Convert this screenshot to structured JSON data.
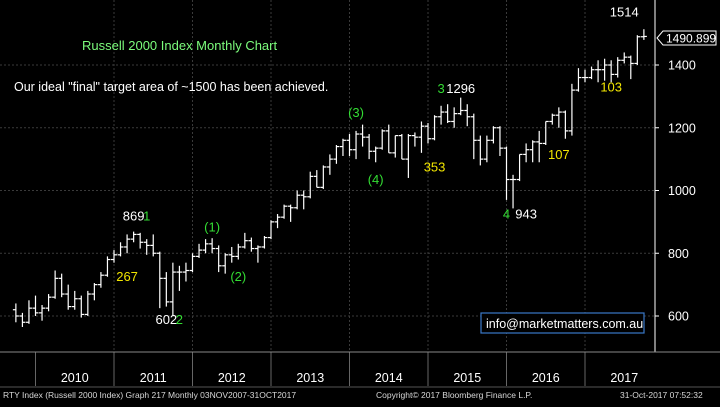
{
  "chart_data": {
    "type": "ohlc",
    "title": "Russell 2000 Index Monthly Chart",
    "annotation_text": "Our ideal \"final\" target area of ~1500 has been achieved.",
    "last_price_label": "1490.899",
    "watermark": "info@marketmatters.com.au",
    "footer_left": "RTY Index (Russell 2000 Index) Graph 217  Monthly 03NOV2007-31OCT2017",
    "footer_center": "Copyright© 2017 Bloomberg Finance L.P.",
    "footer_right": "31-Oct-2017 07:52:32",
    "x_ticks": [
      "2010",
      "2011",
      "2012",
      "2013",
      "2014",
      "2015",
      "2016",
      "2017"
    ],
    "y_ticks": [
      600,
      800,
      1000,
      1200,
      1400
    ],
    "ylim": [
      490,
      1560
    ],
    "grid": true,
    "colors": {
      "background": "#000000",
      "bars": "#ffffff",
      "grid": "#3a3a3a",
      "title": "#7CFC7C",
      "wave_green": "#33dd33",
      "wave_yellow": "#f2e600",
      "price_label": "#ffffff",
      "watermark_border": "#3a78c8"
    },
    "series": [
      {
        "x": "2009-10",
        "open": 620,
        "high": 640,
        "low": 580,
        "close": 600
      },
      {
        "x": "2009-11",
        "open": 600,
        "high": 610,
        "low": 565,
        "close": 580
      },
      {
        "x": "2009-12",
        "open": 580,
        "high": 650,
        "low": 575,
        "close": 625
      },
      {
        "x": "2010-01",
        "open": 625,
        "high": 665,
        "low": 600,
        "close": 610
      },
      {
        "x": "2010-02",
        "open": 610,
        "high": 635,
        "low": 585,
        "close": 625
      },
      {
        "x": "2010-03",
        "open": 625,
        "high": 670,
        "low": 615,
        "close": 660
      },
      {
        "x": "2010-04",
        "open": 660,
        "high": 745,
        "low": 655,
        "close": 720
      },
      {
        "x": "2010-05",
        "open": 720,
        "high": 735,
        "low": 660,
        "close": 670
      },
      {
        "x": "2010-06",
        "open": 670,
        "high": 700,
        "low": 620,
        "close": 630
      },
      {
        "x": "2010-07",
        "open": 630,
        "high": 680,
        "low": 620,
        "close": 655
      },
      {
        "x": "2010-08",
        "open": 655,
        "high": 665,
        "low": 595,
        "close": 605
      },
      {
        "x": "2010-09",
        "open": 605,
        "high": 680,
        "low": 600,
        "close": 670
      },
      {
        "x": "2010-10",
        "open": 670,
        "high": 705,
        "low": 650,
        "close": 700
      },
      {
        "x": "2010-11",
        "open": 700,
        "high": 740,
        "low": 690,
        "close": 730
      },
      {
        "x": "2010-12",
        "open": 730,
        "high": 790,
        "low": 725,
        "close": 780
      },
      {
        "x": "2011-01",
        "open": 780,
        "high": 810,
        "low": 770,
        "close": 795
      },
      {
        "x": "2011-02",
        "open": 795,
        "high": 835,
        "low": 790,
        "close": 820
      },
      {
        "x": "2011-03",
        "open": 820,
        "high": 860,
        "low": 800,
        "close": 845
      },
      {
        "x": "2011-04",
        "open": 845,
        "high": 869,
        "low": 835,
        "close": 860
      },
      {
        "x": "2011-05",
        "open": 860,
        "high": 865,
        "low": 815,
        "close": 835
      },
      {
        "x": "2011-06",
        "open": 835,
        "high": 845,
        "low": 795,
        "close": 825
      },
      {
        "x": "2011-07",
        "open": 825,
        "high": 860,
        "low": 790,
        "close": 800
      },
      {
        "x": "2011-08",
        "open": 800,
        "high": 805,
        "low": 625,
        "close": 720
      },
      {
        "x": "2011-09",
        "open": 720,
        "high": 740,
        "low": 630,
        "close": 645
      },
      {
        "x": "2011-10",
        "open": 645,
        "high": 770,
        "low": 602,
        "close": 740
      },
      {
        "x": "2011-11",
        "open": 740,
        "high": 760,
        "low": 680,
        "close": 740
      },
      {
        "x": "2011-12",
        "open": 740,
        "high": 770,
        "low": 710,
        "close": 745
      },
      {
        "x": "2012-01",
        "open": 745,
        "high": 800,
        "low": 740,
        "close": 790
      },
      {
        "x": "2012-02",
        "open": 790,
        "high": 830,
        "low": 785,
        "close": 810
      },
      {
        "x": "2012-03",
        "open": 810,
        "high": 845,
        "low": 800,
        "close": 830
      },
      {
        "x": "2012-04",
        "open": 830,
        "high": 848,
        "low": 800,
        "close": 815
      },
      {
        "x": "2012-05",
        "open": 815,
        "high": 825,
        "low": 740,
        "close": 760
      },
      {
        "x": "2012-06",
        "open": 760,
        "high": 800,
        "low": 735,
        "close": 795
      },
      {
        "x": "2012-07",
        "open": 795,
        "high": 820,
        "low": 770,
        "close": 790
      },
      {
        "x": "2012-08",
        "open": 790,
        "high": 830,
        "low": 780,
        "close": 820
      },
      {
        "x": "2012-09",
        "open": 820,
        "high": 865,
        "low": 815,
        "close": 840
      },
      {
        "x": "2012-10",
        "open": 840,
        "high": 850,
        "low": 805,
        "close": 815
      },
      {
        "x": "2012-11",
        "open": 815,
        "high": 825,
        "low": 770,
        "close": 820
      },
      {
        "x": "2012-12",
        "open": 820,
        "high": 855,
        "low": 815,
        "close": 850
      },
      {
        "x": "2013-01",
        "open": 850,
        "high": 905,
        "low": 845,
        "close": 900
      },
      {
        "x": "2013-02",
        "open": 900,
        "high": 925,
        "low": 880,
        "close": 915
      },
      {
        "x": "2013-03",
        "open": 915,
        "high": 955,
        "low": 910,
        "close": 950
      },
      {
        "x": "2013-04",
        "open": 950,
        "high": 955,
        "low": 900,
        "close": 945
      },
      {
        "x": "2013-05",
        "open": 945,
        "high": 1000,
        "low": 940,
        "close": 985
      },
      {
        "x": "2013-06",
        "open": 985,
        "high": 1000,
        "low": 940,
        "close": 980
      },
      {
        "x": "2013-07",
        "open": 980,
        "high": 1060,
        "low": 975,
        "close": 1045
      },
      {
        "x": "2013-08",
        "open": 1045,
        "high": 1065,
        "low": 1010,
        "close": 1010
      },
      {
        "x": "2013-09",
        "open": 1010,
        "high": 1080,
        "low": 1005,
        "close": 1075
      },
      {
        "x": "2013-10",
        "open": 1075,
        "high": 1115,
        "low": 1050,
        "close": 1100
      },
      {
        "x": "2013-11",
        "open": 1100,
        "high": 1145,
        "low": 1085,
        "close": 1140
      },
      {
        "x": "2013-12",
        "open": 1140,
        "high": 1165,
        "low": 1110,
        "close": 1160
      },
      {
        "x": "2014-01",
        "open": 1160,
        "high": 1180,
        "low": 1110,
        "close": 1130
      },
      {
        "x": "2014-02",
        "open": 1130,
        "high": 1190,
        "low": 1100,
        "close": 1180
      },
      {
        "x": "2014-03",
        "open": 1180,
        "high": 1210,
        "low": 1140,
        "close": 1170
      },
      {
        "x": "2014-04",
        "open": 1170,
        "high": 1180,
        "low": 1100,
        "close": 1125
      },
      {
        "x": "2014-05",
        "open": 1125,
        "high": 1140,
        "low": 1090,
        "close": 1135
      },
      {
        "x": "2014-06",
        "open": 1135,
        "high": 1195,
        "low": 1130,
        "close": 1190
      },
      {
        "x": "2014-07",
        "open": 1190,
        "high": 1210,
        "low": 1120,
        "close": 1120
      },
      {
        "x": "2014-08",
        "open": 1120,
        "high": 1175,
        "low": 1105,
        "close": 1175
      },
      {
        "x": "2014-09",
        "open": 1175,
        "high": 1180,
        "low": 1100,
        "close": 1100
      },
      {
        "x": "2014-10",
        "open": 1100,
        "high": 1180,
        "low": 1040,
        "close": 1175
      },
      {
        "x": "2014-11",
        "open": 1175,
        "high": 1185,
        "low": 1140,
        "close": 1170
      },
      {
        "x": "2014-12",
        "open": 1170,
        "high": 1220,
        "low": 1120,
        "close": 1205
      },
      {
        "x": "2015-01",
        "open": 1205,
        "high": 1215,
        "low": 1150,
        "close": 1165
      },
      {
        "x": "2015-02",
        "open": 1165,
        "high": 1240,
        "low": 1160,
        "close": 1235
      },
      {
        "x": "2015-03",
        "open": 1235,
        "high": 1270,
        "low": 1210,
        "close": 1250
      },
      {
        "x": "2015-04",
        "open": 1250,
        "high": 1275,
        "low": 1215,
        "close": 1220
      },
      {
        "x": "2015-05",
        "open": 1220,
        "high": 1265,
        "low": 1200,
        "close": 1245
      },
      {
        "x": "2015-06",
        "open": 1245,
        "high": 1296,
        "low": 1240,
        "close": 1255
      },
      {
        "x": "2015-07",
        "open": 1255,
        "high": 1275,
        "low": 1205,
        "close": 1235
      },
      {
        "x": "2015-08",
        "open": 1235,
        "high": 1245,
        "low": 1100,
        "close": 1160
      },
      {
        "x": "2015-09",
        "open": 1160,
        "high": 1175,
        "low": 1080,
        "close": 1100
      },
      {
        "x": "2015-10",
        "open": 1100,
        "high": 1175,
        "low": 1090,
        "close": 1160
      },
      {
        "x": "2015-11",
        "open": 1160,
        "high": 1205,
        "low": 1150,
        "close": 1200
      },
      {
        "x": "2015-12",
        "open": 1200,
        "high": 1205,
        "low": 1110,
        "close": 1135
      },
      {
        "x": "2016-01",
        "open": 1135,
        "high": 1140,
        "low": 970,
        "close": 1035
      },
      {
        "x": "2016-02",
        "open": 1035,
        "high": 1050,
        "low": 943,
        "close": 1035
      },
      {
        "x": "2016-03",
        "open": 1035,
        "high": 1115,
        "low": 1030,
        "close": 1115
      },
      {
        "x": "2016-04",
        "open": 1115,
        "high": 1150,
        "low": 1090,
        "close": 1130
      },
      {
        "x": "2016-05",
        "open": 1130,
        "high": 1160,
        "low": 1090,
        "close": 1155
      },
      {
        "x": "2016-06",
        "open": 1155,
        "high": 1190,
        "low": 1090,
        "close": 1150
      },
      {
        "x": "2016-07",
        "open": 1150,
        "high": 1220,
        "low": 1145,
        "close": 1220
      },
      {
        "x": "2016-08",
        "open": 1220,
        "high": 1245,
        "low": 1210,
        "close": 1240
      },
      {
        "x": "2016-09",
        "open": 1240,
        "high": 1265,
        "low": 1200,
        "close": 1250
      },
      {
        "x": "2016-10",
        "open": 1250,
        "high": 1255,
        "low": 1165,
        "close": 1190
      },
      {
        "x": "2016-11",
        "open": 1190,
        "high": 1340,
        "low": 1175,
        "close": 1320
      },
      {
        "x": "2016-12",
        "open": 1320,
        "high": 1390,
        "low": 1315,
        "close": 1360
      },
      {
        "x": "2017-01",
        "open": 1360,
        "high": 1385,
        "low": 1345,
        "close": 1360
      },
      {
        "x": "2017-02",
        "open": 1360,
        "high": 1395,
        "low": 1355,
        "close": 1385
      },
      {
        "x": "2017-03",
        "open": 1385,
        "high": 1415,
        "low": 1345,
        "close": 1385
      },
      {
        "x": "2017-04",
        "open": 1385,
        "high": 1420,
        "low": 1350,
        "close": 1400
      },
      {
        "x": "2017-05",
        "open": 1400,
        "high": 1415,
        "low": 1345,
        "close": 1370
      },
      {
        "x": "2017-06",
        "open": 1370,
        "high": 1425,
        "low": 1360,
        "close": 1415
      },
      {
        "x": "2017-07",
        "open": 1415,
        "high": 1440,
        "low": 1405,
        "close": 1425
      },
      {
        "x": "2017-08",
        "open": 1425,
        "high": 1430,
        "low": 1355,
        "close": 1405
      },
      {
        "x": "2017-09",
        "open": 1405,
        "high": 1495,
        "low": 1400,
        "close": 1490
      },
      {
        "x": "2017-10",
        "open": 1490,
        "high": 1514,
        "low": 1480,
        "close": 1491
      }
    ],
    "annotations": [
      {
        "text": "869",
        "x": "2011-04",
        "y": 905,
        "color": "white"
      },
      {
        "text": "1",
        "x": "2011-06",
        "y": 905,
        "color": "green"
      },
      {
        "text": "267",
        "x": "2011-03",
        "y": 712,
        "color": "yellow"
      },
      {
        "text": "602",
        "x": "2011-09",
        "y": 575,
        "color": "white"
      },
      {
        "text": "2",
        "x": "2011-11",
        "y": 575,
        "color": "green"
      },
      {
        "text": "(1)",
        "x": "2012-04",
        "y": 870,
        "color": "green"
      },
      {
        "text": "(2)",
        "x": "2012-08",
        "y": 712,
        "color": "green"
      },
      {
        "text": "(3)",
        "x": "2014-02",
        "y": 1235,
        "color": "green"
      },
      {
        "text": "(4)",
        "x": "2014-05",
        "y": 1020,
        "color": "green"
      },
      {
        "text": "3",
        "x": "2015-03",
        "y": 1310,
        "color": "green"
      },
      {
        "text": "1296",
        "x": "2015-06",
        "y": 1310,
        "color": "white"
      },
      {
        "text": "353",
        "x": "2015-02",
        "y": 1060,
        "color": "yellow"
      },
      {
        "text": "4",
        "x": "2016-01",
        "y": 910,
        "color": "green"
      },
      {
        "text": "943",
        "x": "2016-04",
        "y": 910,
        "color": "white"
      },
      {
        "text": "107",
        "x": "2016-09",
        "y": 1100,
        "color": "yellow"
      },
      {
        "text": "103",
        "x": "2017-05",
        "y": 1315,
        "color": "yellow"
      },
      {
        "text": "1514",
        "x": "2017-07",
        "y": 1555,
        "color": "white"
      }
    ]
  }
}
